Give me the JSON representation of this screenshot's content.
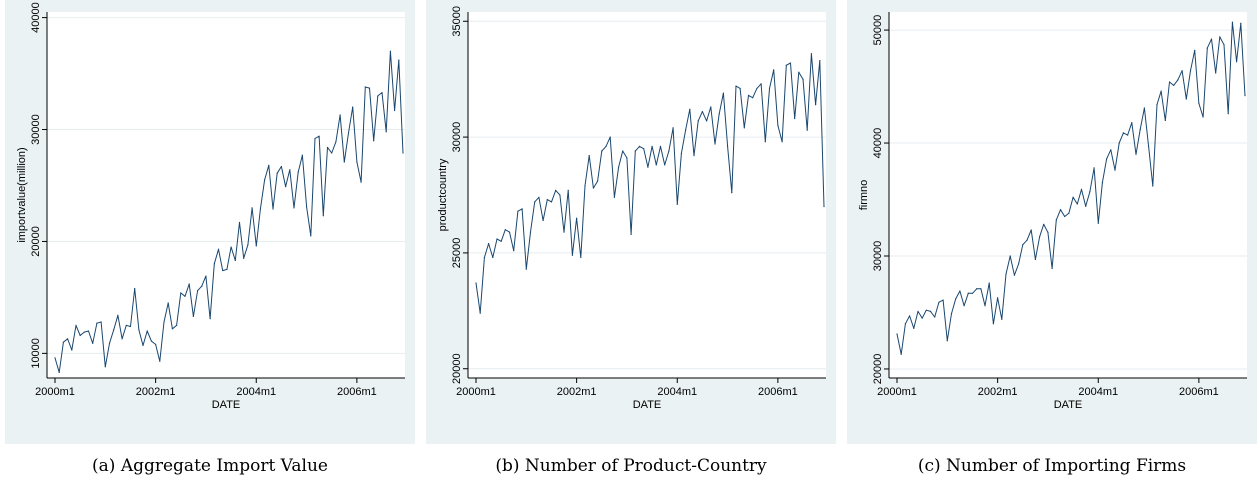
{
  "chart_data": [
    {
      "type": "line",
      "caption": "(a) Aggregate Import Value",
      "xlabel": "DATE",
      "ylabel": "importvalue(million)",
      "x_ticks": [
        "2000m1",
        "2002m1",
        "2004m1",
        "2006m1"
      ],
      "y_ticks": [
        "10000",
        "20000",
        "30000",
        "40000"
      ],
      "ylim": [
        7800,
        40500
      ],
      "grid": true,
      "color": "#1a476f",
      "x": [
        "2000m1",
        "2000m2",
        "2000m3",
        "2000m4",
        "2000m5",
        "2000m6",
        "2000m7",
        "2000m8",
        "2000m9",
        "2000m10",
        "2000m11",
        "2000m12",
        "2001m1",
        "2001m2",
        "2001m3",
        "2001m4",
        "2001m5",
        "2001m6",
        "2001m7",
        "2001m8",
        "2001m9",
        "2001m10",
        "2001m11",
        "2001m12",
        "2002m1",
        "2002m2",
        "2002m3",
        "2002m4",
        "2002m5",
        "2002m6",
        "2002m7",
        "2002m8",
        "2002m9",
        "2002m10",
        "2002m11",
        "2002m12",
        "2003m1",
        "2003m2",
        "2003m3",
        "2003m4",
        "2003m5",
        "2003m6",
        "2003m7",
        "2003m8",
        "2003m9",
        "2003m10",
        "2003m11",
        "2003m12",
        "2004m1",
        "2004m2",
        "2004m3",
        "2004m4",
        "2004m5",
        "2004m6",
        "2004m7",
        "2004m8",
        "2004m9",
        "2004m10",
        "2004m11",
        "2004m12",
        "2005m1",
        "2005m2",
        "2005m3",
        "2005m4",
        "2005m5",
        "2005m6",
        "2005m7",
        "2005m8",
        "2005m9",
        "2005m10",
        "2005m11",
        "2005m12",
        "2006m1",
        "2006m2",
        "2006m3",
        "2006m4",
        "2006m5",
        "2006m6",
        "2006m7",
        "2006m8",
        "2006m9",
        "2006m10",
        "2006m11",
        "2006m12"
      ],
      "values": [
        9600,
        8300,
        11000,
        11300,
        10300,
        12500,
        11600,
        11900,
        12000,
        10900,
        12700,
        12800,
        8800,
        10900,
        12100,
        13400,
        11300,
        12500,
        12400,
        15800,
        12100,
        10700,
        12000,
        11100,
        10800,
        9300,
        12800,
        14500,
        12200,
        12500,
        15400,
        15100,
        16200,
        13300,
        15600,
        16000,
        16900,
        13100,
        18000,
        19300,
        17400,
        17500,
        19500,
        18300,
        21700,
        18500,
        19700,
        23000,
        19600,
        22900,
        25500,
        26800,
        22900,
        26100,
        26700,
        24900,
        26400,
        23000,
        26200,
        27700,
        23100,
        20500,
        29200,
        29400,
        22300,
        28400,
        27900,
        28900,
        31300,
        27100,
        29700,
        32000,
        27100,
        25300,
        33800,
        33700,
        29000,
        33000,
        33300,
        29800,
        37000,
        31700,
        36200,
        27900
      ]
    },
    {
      "type": "line",
      "caption": "(b) Number of Product-Country",
      "xlabel": "DATE",
      "ylabel": "productcountry",
      "x_ticks": [
        "2000m1",
        "2002m1",
        "2004m1",
        "2006m1"
      ],
      "y_ticks": [
        "20000",
        "25000",
        "30000",
        "35000"
      ],
      "ylim": [
        19600,
        35400
      ],
      "grid": true,
      "color": "#1a476f",
      "x": [
        "2000m1",
        "2000m2",
        "2000m3",
        "2000m4",
        "2000m5",
        "2000m6",
        "2000m7",
        "2000m8",
        "2000m9",
        "2000m10",
        "2000m11",
        "2000m12",
        "2001m1",
        "2001m2",
        "2001m3",
        "2001m4",
        "2001m5",
        "2001m6",
        "2001m7",
        "2001m8",
        "2001m9",
        "2001m10",
        "2001m11",
        "2001m12",
        "2002m1",
        "2002m2",
        "2002m3",
        "2002m4",
        "2002m5",
        "2002m6",
        "2002m7",
        "2002m8",
        "2002m9",
        "2002m10",
        "2002m11",
        "2002m12",
        "2003m1",
        "2003m2",
        "2003m3",
        "2003m4",
        "2003m5",
        "2003m6",
        "2003m7",
        "2003m8",
        "2003m9",
        "2003m10",
        "2003m11",
        "2003m12",
        "2004m1",
        "2004m2",
        "2004m3",
        "2004m4",
        "2004m5",
        "2004m6",
        "2004m7",
        "2004m8",
        "2004m9",
        "2004m10",
        "2004m11",
        "2004m12",
        "2005m1",
        "2005m2",
        "2005m3",
        "2005m4",
        "2005m5",
        "2005m6",
        "2005m7",
        "2005m8",
        "2005m9",
        "2005m10",
        "2005m11",
        "2005m12",
        "2006m1",
        "2006m2",
        "2006m3",
        "2006m4",
        "2006m5",
        "2006m6",
        "2006m7",
        "2006m8",
        "2006m9",
        "2006m10",
        "2006m11",
        "2006m12"
      ],
      "values": [
        23700,
        22400,
        24800,
        25400,
        24800,
        25600,
        25500,
        26000,
        25900,
        25100,
        26800,
        26900,
        24300,
        25900,
        27200,
        27400,
        26400,
        27300,
        27200,
        27700,
        27500,
        25900,
        27700,
        24900,
        26500,
        24800,
        27900,
        29200,
        27800,
        28100,
        29400,
        29600,
        30000,
        27400,
        28700,
        29400,
        29100,
        25800,
        29400,
        29600,
        29500,
        28700,
        29600,
        28800,
        29600,
        28800,
        29400,
        30400,
        27100,
        29300,
        30300,
        31200,
        29200,
        30700,
        31100,
        30700,
        31300,
        29700,
        31000,
        31900,
        29600,
        27600,
        32200,
        32100,
        30400,
        31800,
        31700,
        32100,
        32300,
        29800,
        32100,
        32900,
        30500,
        29800,
        33100,
        33200,
        30800,
        32800,
        32500,
        30300,
        33600,
        31400,
        33300,
        27000
      ]
    },
    {
      "type": "line",
      "caption": "(c) Number of Importing Firms",
      "xlabel": "DATE",
      "ylabel": "firmno",
      "x_ticks": [
        "2000m1",
        "2002m1",
        "2004m1",
        "2006m1"
      ],
      "y_ticks": [
        "20000",
        "30000",
        "40000",
        "50000"
      ],
      "ylim": [
        19200,
        51600
      ],
      "grid": true,
      "color": "#1a476f",
      "x": [
        "2000m1",
        "2000m2",
        "2000m3",
        "2000m4",
        "2000m5",
        "2000m6",
        "2000m7",
        "2000m8",
        "2000m9",
        "2000m10",
        "2000m11",
        "2000m12",
        "2001m1",
        "2001m2",
        "2001m3",
        "2001m4",
        "2001m5",
        "2001m6",
        "2001m7",
        "2001m8",
        "2001m9",
        "2001m10",
        "2001m11",
        "2001m12",
        "2002m1",
        "2002m2",
        "2002m3",
        "2002m4",
        "2002m5",
        "2002m6",
        "2002m7",
        "2002m8",
        "2002m9",
        "2002m10",
        "2002m11",
        "2002m12",
        "2003m1",
        "2003m2",
        "2003m3",
        "2003m4",
        "2003m5",
        "2003m6",
        "2003m7",
        "2003m8",
        "2003m9",
        "2003m10",
        "2003m11",
        "2003m12",
        "2004m1",
        "2004m2",
        "2004m3",
        "2004m4",
        "2004m5",
        "2004m6",
        "2004m7",
        "2004m8",
        "2004m9",
        "2004m10",
        "2004m11",
        "2004m12",
        "2005m1",
        "2005m2",
        "2005m3",
        "2005m4",
        "2005m5",
        "2005m6",
        "2005m7",
        "2005m8",
        "2005m9",
        "2005m10",
        "2005m11",
        "2005m12",
        "2006m1",
        "2006m2",
        "2006m3",
        "2006m4",
        "2006m5",
        "2006m6",
        "2006m7",
        "2006m8",
        "2006m9",
        "2006m10",
        "2006m11",
        "2006m12"
      ],
      "values": [
        23100,
        21300,
        24000,
        24700,
        23600,
        25100,
        24500,
        25200,
        25100,
        24600,
        25900,
        26100,
        22500,
        24900,
        26200,
        26900,
        25600,
        26700,
        26700,
        27100,
        27100,
        25600,
        27600,
        24000,
        26300,
        24400,
        28400,
        30000,
        28300,
        29300,
        31000,
        31400,
        32300,
        29700,
        31700,
        32800,
        32100,
        28900,
        33200,
        34100,
        33500,
        33800,
        35200,
        34600,
        35900,
        34400,
        35700,
        37800,
        32900,
        36500,
        38600,
        39400,
        37600,
        40000,
        40900,
        40700,
        41800,
        39000,
        41200,
        43100,
        39700,
        36200,
        43400,
        44600,
        42000,
        45400,
        45100,
        45600,
        46400,
        43900,
        46400,
        48200,
        43500,
        42300,
        48400,
        49200,
        46200,
        49400,
        48700,
        42600,
        50700,
        47200,
        50600,
        44200
      ]
    }
  ]
}
